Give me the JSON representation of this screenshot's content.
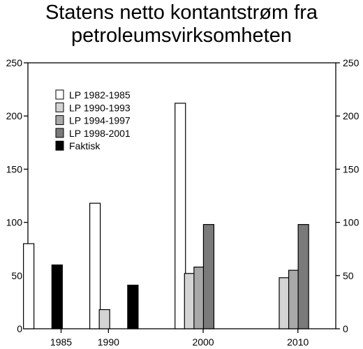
{
  "chart_data": {
    "type": "bar",
    "title_lines": [
      "Statens netto kontantstrøm fra",
      "petroleumsvirksomheten"
    ],
    "xlabel": "",
    "ylabel": "",
    "ylim": [
      0,
      250
    ],
    "yticks": [
      0,
      50,
      100,
      150,
      200,
      250
    ],
    "xticks": [
      1985,
      1990,
      2000,
      2010
    ],
    "xlim": [
      1981.5,
      2014
    ],
    "legend_position": "top-left",
    "grid": false,
    "series": [
      {
        "name": "LP 1982-1985",
        "color": "#ffffff",
        "points": [
          {
            "x": 1981,
            "y": 80
          },
          {
            "x": 1988,
            "y": 118
          },
          {
            "x": 1997,
            "y": 212
          }
        ]
      },
      {
        "name": "LP 1990-1993",
        "color": "#d4d4d4",
        "points": [
          {
            "x": 1989,
            "y": 18
          },
          {
            "x": 1998,
            "y": 52
          },
          {
            "x": 2008,
            "y": 48
          }
        ]
      },
      {
        "name": "LP 1994-1997",
        "color": "#a8a8a8",
        "points": [
          {
            "x": 1999,
            "y": 58
          },
          {
            "x": 2009,
            "y": 55
          }
        ]
      },
      {
        "name": "LP 1998-2001",
        "color": "#7a7a7a",
        "points": [
          {
            "x": 2000,
            "y": 98
          },
          {
            "x": 2010,
            "y": 98
          }
        ]
      },
      {
        "name": "Faktisk",
        "color": "#000000",
        "points": [
          {
            "x": 1984,
            "y": 60
          },
          {
            "x": 1992,
            "y": 41
          }
        ]
      }
    ]
  }
}
